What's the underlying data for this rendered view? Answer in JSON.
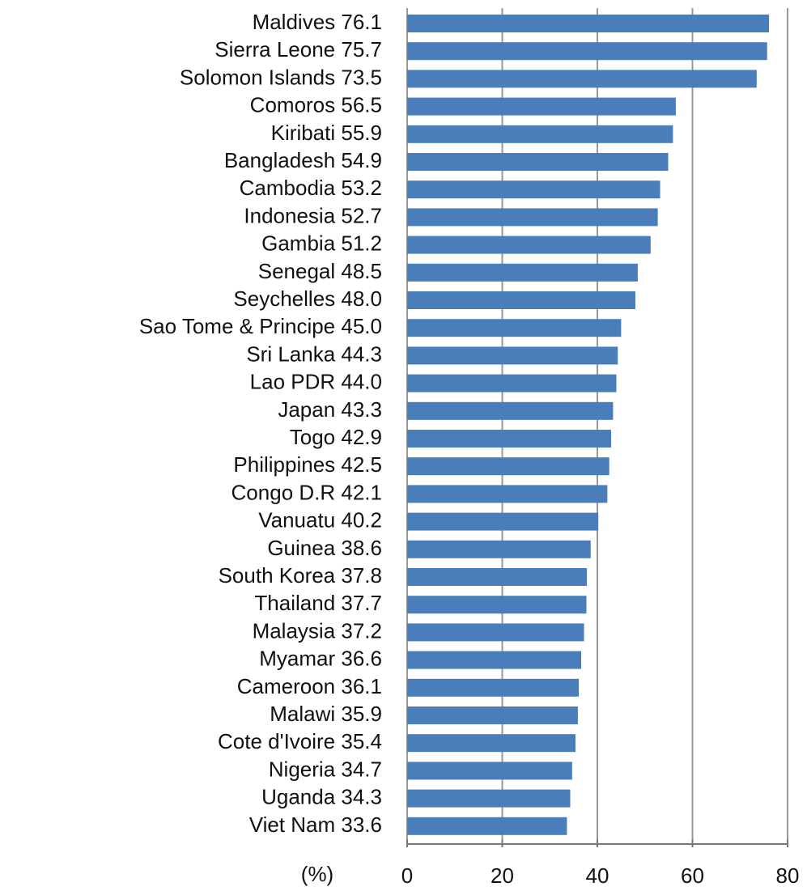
{
  "chart_data": {
    "type": "barh",
    "x_label": "(%)",
    "categories": [
      "Maldives",
      "Sierra Leone",
      "Solomon Islands",
      "Comoros",
      "Kiribati",
      "Bangladesh",
      "Cambodia",
      "Indonesia",
      "Gambia",
      "Senegal",
      "Seychelles",
      "Sao Tome & Principe",
      "Sri Lanka",
      "Lao PDR",
      "Japan",
      "Togo",
      "Philippines",
      "Congo D.R",
      "Vanuatu",
      "Guinea",
      "South Korea",
      "Thailand",
      "Malaysia",
      "Myamar",
      "Cameroon",
      "Malawi",
      "Cote d'Ivoire",
      "Nigeria",
      "Uganda",
      "Viet Nam"
    ],
    "values": [
      76.1,
      75.7,
      73.5,
      56.5,
      55.9,
      54.9,
      53.2,
      52.7,
      51.2,
      48.5,
      48.0,
      45.0,
      44.3,
      44.0,
      43.3,
      42.9,
      42.5,
      42.1,
      40.2,
      38.6,
      37.8,
      37.7,
      37.2,
      36.6,
      36.1,
      35.9,
      35.4,
      34.7,
      34.3,
      33.6
    ],
    "value_labels": [
      "76.1",
      "75.7",
      "73.5",
      "56.5",
      "55.9",
      "54.9",
      "53.2",
      "52.7",
      "51.2",
      "48.5",
      "48.0",
      "45.0",
      "44.3",
      "44.0",
      "43.3",
      "42.9",
      "42.5",
      "42.1",
      "40.2",
      "38.6",
      "37.8",
      "37.7",
      "37.2",
      "36.6",
      "36.1",
      "35.9",
      "35.4",
      "34.7",
      "34.3",
      "33.6"
    ],
    "color": "#4a7ebb",
    "xlim": [
      0,
      80
    ],
    "xticks": [
      0,
      20,
      40,
      60,
      80
    ],
    "grid": true
  }
}
